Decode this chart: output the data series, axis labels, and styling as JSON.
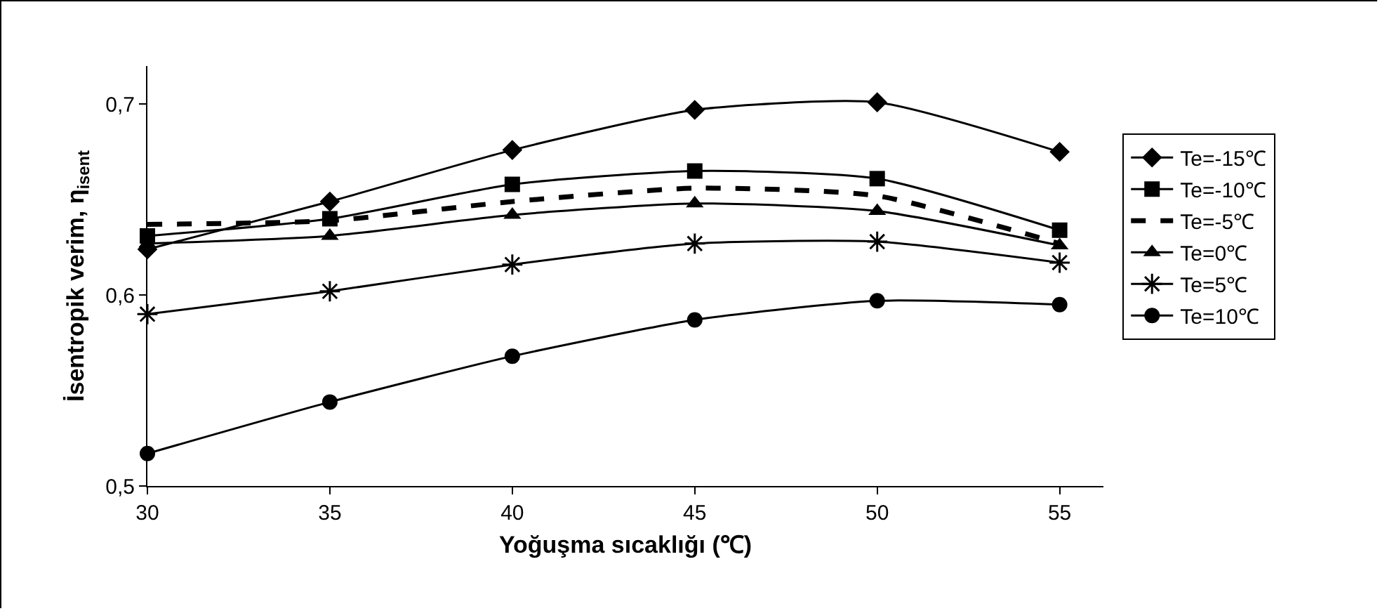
{
  "chart_data": {
    "type": "line",
    "xlabel": "Yoğuşma sıcaklığı (℃)",
    "ylabel": "İsentropik verim, η$_{isent}$",
    "x": [
      30,
      35,
      40,
      45,
      50,
      55
    ],
    "xlim": [
      30,
      56.2
    ],
    "xticks": [
      30,
      35,
      40,
      45,
      50,
      55
    ],
    "ylim": [
      0.5,
      0.72
    ],
    "yticks": [
      {
        "value": 0.5,
        "label": "0,5"
      },
      {
        "value": 0.6,
        "label": "0,6"
      },
      {
        "value": 0.7,
        "label": "0,7"
      }
    ],
    "grid": false,
    "legend": "right",
    "line_style": "solid",
    "series": [
      {
        "name": "Te=-15℃",
        "color": "#000000",
        "marker": "diamond",
        "values": [
          0.624,
          0.649,
          0.676,
          0.697,
          0.701,
          0.675
        ]
      },
      {
        "name": "Te=-10℃",
        "color": "#000000",
        "marker": "square",
        "values": [
          0.631,
          0.64,
          0.658,
          0.665,
          0.661,
          0.634
        ]
      },
      {
        "name": "Te=-5℃",
        "color": "#000000",
        "marker": "none",
        "line_style": "dashed",
        "values": [
          0.637,
          0.639,
          0.649,
          0.656,
          0.652,
          0.627
        ]
      },
      {
        "name": "Te=0℃",
        "color": "#000000",
        "marker": "triangle",
        "values": [
          0.627,
          0.631,
          0.642,
          0.648,
          0.644,
          0.626
        ]
      },
      {
        "name": "Te=5℃",
        "color": "#000000",
        "marker": "cross",
        "values": [
          0.59,
          0.602,
          0.616,
          0.627,
          0.628,
          0.617
        ]
      },
      {
        "name": "Te=10℃",
        "color": "#000000",
        "marker": "circle",
        "values": [
          0.517,
          0.544,
          0.568,
          0.587,
          0.597,
          0.595
        ]
      }
    ]
  }
}
